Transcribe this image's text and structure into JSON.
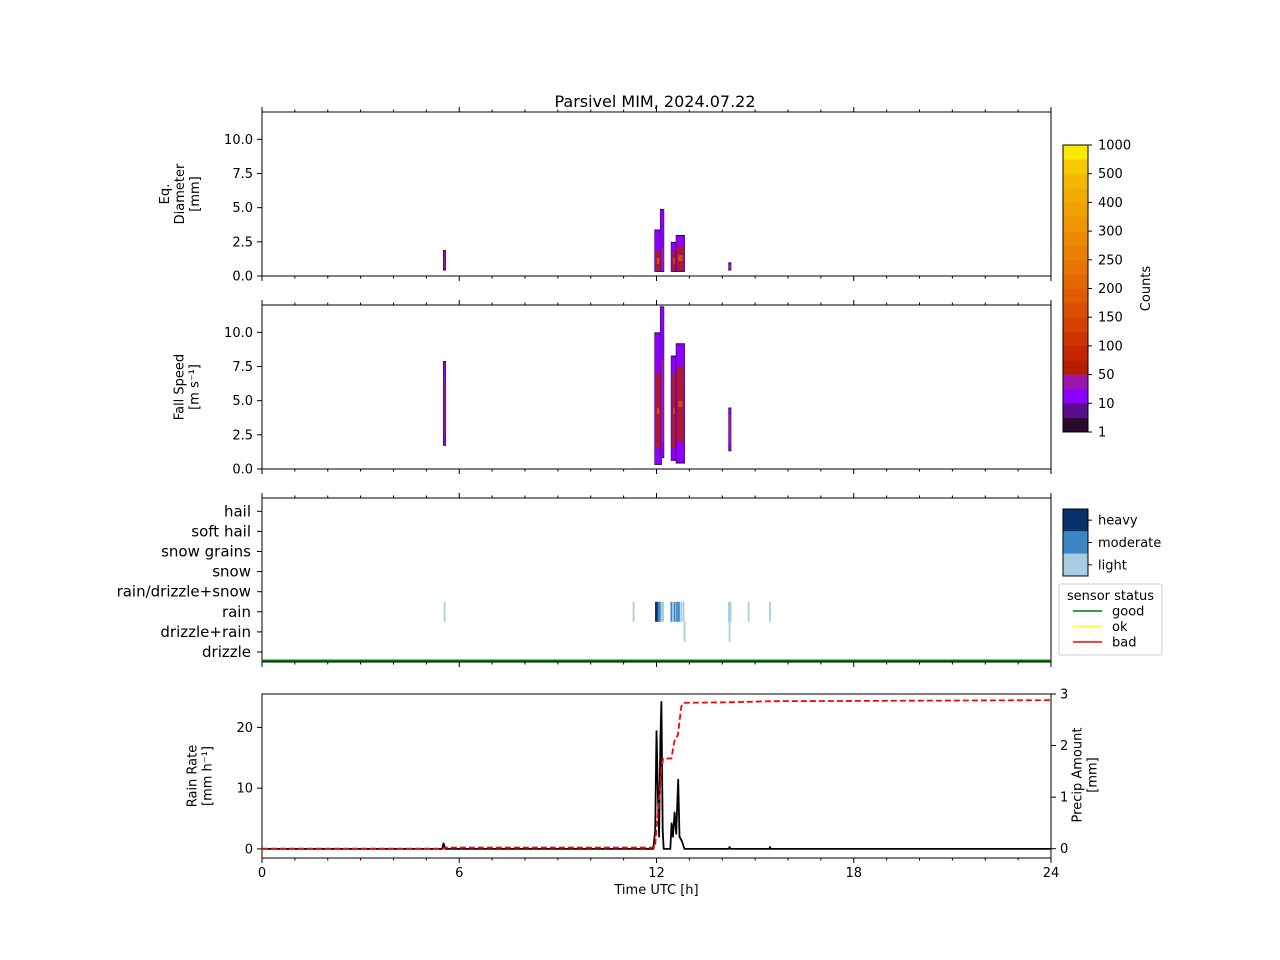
{
  "figure": {
    "title": "Parsivel MIM, 2024.07.22"
  },
  "chart_data": [
    {
      "id": "diameter",
      "type": "heatmap",
      "ylabel_lines": [
        "Eq.",
        "Diameter",
        "[mm]"
      ],
      "ylim": [
        0,
        12
      ],
      "yticks": [
        "0.0",
        "2.5",
        "5.0",
        "7.5",
        "10.0"
      ],
      "ytick_values": [
        0,
        2.5,
        5,
        7.5,
        10
      ],
      "xlim": [
        0,
        24
      ],
      "events": [
        {
          "t0": 5.52,
          "t1": 5.58,
          "bottom": 0.4,
          "top": 1.9,
          "core_bottom": 0.6,
          "core_top": 1.3
        },
        {
          "t0": 11.95,
          "t1": 12.15,
          "bottom": 0.3,
          "top": 3.4,
          "core_bottom": 0.4,
          "core_top": 1.8
        },
        {
          "t0": 12.12,
          "t1": 12.22,
          "bottom": 0.3,
          "top": 4.9,
          "core_bottom": 0.4,
          "core_top": 2.0
        },
        {
          "t0": 12.45,
          "t1": 12.62,
          "bottom": 0.3,
          "top": 2.5,
          "core_bottom": 0.4,
          "core_top": 1.8
        },
        {
          "t0": 12.6,
          "t1": 12.85,
          "bottom": 0.3,
          "top": 3.0,
          "core_bottom": 0.4,
          "core_top": 2.2
        },
        {
          "t0": 14.2,
          "t1": 14.26,
          "bottom": 0.4,
          "top": 1.0,
          "core_bottom": 0.5,
          "core_top": 0.8
        }
      ]
    },
    {
      "id": "fallspeed",
      "type": "heatmap",
      "ylabel_lines": [
        "Fall Speed",
        "[m s⁻¹]"
      ],
      "ylim": [
        0,
        12
      ],
      "yticks": [
        "0.0",
        "2.5",
        "5.0",
        "7.5",
        "10.0"
      ],
      "ytick_values": [
        0,
        2.5,
        5,
        7.5,
        10
      ],
      "xlim": [
        0,
        24
      ],
      "events": [
        {
          "t0": 5.52,
          "t1": 5.58,
          "bottom": 1.7,
          "top": 7.9,
          "core_bottom": 2.5,
          "core_top": 6.8
        },
        {
          "t0": 11.95,
          "t1": 12.15,
          "bottom": 0.3,
          "top": 10.0,
          "core_bottom": 1.5,
          "core_top": 7.0
        },
        {
          "t0": 12.12,
          "t1": 12.22,
          "bottom": 0.8,
          "top": 11.9,
          "core_bottom": 2.0,
          "core_top": 8.0
        },
        {
          "t0": 12.45,
          "t1": 12.62,
          "bottom": 0.6,
          "top": 8.3,
          "core_bottom": 1.5,
          "core_top": 7.0
        },
        {
          "t0": 12.6,
          "t1": 12.85,
          "bottom": 0.4,
          "top": 9.2,
          "core_bottom": 2.0,
          "core_top": 7.5
        },
        {
          "t0": 14.2,
          "t1": 14.26,
          "bottom": 1.3,
          "top": 4.5,
          "core_bottom": 2.0,
          "core_top": 4.0
        }
      ]
    },
    {
      "id": "precip-type",
      "type": "heatmap",
      "categories": [
        "drizzle",
        "drizzle+rain",
        "rain",
        "rain/drizzle+snow",
        "snow",
        "snow grains",
        "soft hail",
        "hail"
      ],
      "xlim": [
        0,
        24
      ],
      "marks": [
        {
          "t": 5.55,
          "cat": "rain",
          "level": "light"
        },
        {
          "t": 11.3,
          "cat": "rain",
          "level": "light"
        },
        {
          "t": 11.98,
          "cat": "rain",
          "level": "heavy"
        },
        {
          "t": 12.02,
          "cat": "rain",
          "level": "heavy"
        },
        {
          "t": 12.06,
          "cat": "rain",
          "level": "moderate"
        },
        {
          "t": 12.1,
          "cat": "rain",
          "level": "moderate"
        },
        {
          "t": 12.15,
          "cat": "rain",
          "level": "light"
        },
        {
          "t": 12.2,
          "cat": "rain",
          "level": "light"
        },
        {
          "t": 12.45,
          "cat": "rain",
          "level": "moderate"
        },
        {
          "t": 12.5,
          "cat": "rain",
          "level": "light"
        },
        {
          "t": 12.55,
          "cat": "rain",
          "level": "moderate"
        },
        {
          "t": 12.62,
          "cat": "rain",
          "level": "moderate"
        },
        {
          "t": 12.68,
          "cat": "rain",
          "level": "moderate"
        },
        {
          "t": 12.75,
          "cat": "rain",
          "level": "light"
        },
        {
          "t": 12.82,
          "cat": "rain",
          "level": "light"
        },
        {
          "t": 12.85,
          "cat": "drizzle+rain",
          "level": "light"
        },
        {
          "t": 14.2,
          "cat": "rain",
          "level": "light"
        },
        {
          "t": 14.25,
          "cat": "rain",
          "level": "light"
        },
        {
          "t": 14.22,
          "cat": "drizzle+rain",
          "level": "light"
        },
        {
          "t": 14.8,
          "cat": "rain",
          "level": "light"
        },
        {
          "t": 15.45,
          "cat": "rain",
          "level": "light"
        }
      ],
      "intensity_legend": [
        "light",
        "moderate",
        "heavy"
      ],
      "intensity_colors": {
        "light": "#a6cde2",
        "moderate": "#3b87c4",
        "heavy": "#08306b"
      },
      "status_legend_title": "sensor status",
      "status_legend": [
        {
          "label": "good",
          "color": "#008000"
        },
        {
          "label": "ok",
          "color": "#ffff00"
        },
        {
          "label": "bad",
          "color": "#ff0000"
        }
      ],
      "status_value": "good"
    },
    {
      "id": "rainrate",
      "type": "line",
      "ylabel_lines": [
        "Rain Rate",
        "[mm h⁻¹]"
      ],
      "ylim": [
        -1.5,
        25.5
      ],
      "yticks": [
        "0",
        "10",
        "20"
      ],
      "ytick_values": [
        0,
        10,
        20
      ],
      "y2label_lines": [
        "Precip Amount",
        "[mm]"
      ],
      "y2lim": [
        -0.18,
        3
      ],
      "y2ticks": [
        "0",
        "1",
        "2",
        "3"
      ],
      "y2tick_values": [
        0,
        1,
        2,
        3
      ],
      "xlabel": "Time UTC [h]",
      "xlim": [
        0,
        24
      ],
      "xticks": [
        "0",
        "6",
        "12",
        "18",
        "24"
      ],
      "xtick_values": [
        0,
        6,
        12,
        18,
        24
      ],
      "rain_rate": [
        [
          0,
          0
        ],
        [
          5.48,
          0
        ],
        [
          5.52,
          0.9
        ],
        [
          5.58,
          0
        ],
        [
          11.9,
          0
        ],
        [
          11.96,
          3
        ],
        [
          12.0,
          19.4
        ],
        [
          12.05,
          8
        ],
        [
          12.08,
          2
        ],
        [
          12.12,
          18
        ],
        [
          12.15,
          24.2
        ],
        [
          12.19,
          3
        ],
        [
          12.22,
          0
        ],
        [
          12.42,
          0
        ],
        [
          12.46,
          4.2
        ],
        [
          12.5,
          2
        ],
        [
          12.55,
          6
        ],
        [
          12.6,
          2.5
        ],
        [
          12.66,
          11.4
        ],
        [
          12.7,
          2
        ],
        [
          12.78,
          1.2
        ],
        [
          12.85,
          0
        ],
        [
          14.2,
          0
        ],
        [
          14.22,
          0.3
        ],
        [
          14.26,
          0
        ],
        [
          15.43,
          0
        ],
        [
          15.45,
          0.3
        ],
        [
          15.48,
          0
        ],
        [
          24,
          0
        ]
      ],
      "precip_amount": [
        [
          0,
          0
        ],
        [
          5.5,
          0
        ],
        [
          5.6,
          0.02
        ],
        [
          11.95,
          0.02
        ],
        [
          12.03,
          0.6
        ],
        [
          12.08,
          0.9
        ],
        [
          12.14,
          1.5
        ],
        [
          12.2,
          1.75
        ],
        [
          12.45,
          1.75
        ],
        [
          12.55,
          2.1
        ],
        [
          12.65,
          2.2
        ],
        [
          12.75,
          2.75
        ],
        [
          12.82,
          2.83
        ],
        [
          14.25,
          2.84
        ],
        [
          15.5,
          2.86
        ],
        [
          24,
          2.88
        ]
      ],
      "rain_color": "#000000",
      "amount_color": "#ff0000"
    }
  ],
  "colorbar": {
    "label": "Counts",
    "ticks": [
      "1",
      "10",
      "50",
      "100",
      "150",
      "200",
      "250",
      "300",
      "400",
      "500",
      "1000"
    ],
    "colors": [
      "#2b0a2e",
      "#5a0c8a",
      "#8b00ff",
      "#9e14b0",
      "#b51c00",
      "#c52600",
      "#cd3400",
      "#d44200",
      "#da5000",
      "#df5c00",
      "#e36800",
      "#e77400",
      "#ea8000",
      "#ec8b00",
      "#ee9600",
      "#f0a100",
      "#f2ac00",
      "#f4b800",
      "#f7c900",
      "#fde800"
    ]
  }
}
